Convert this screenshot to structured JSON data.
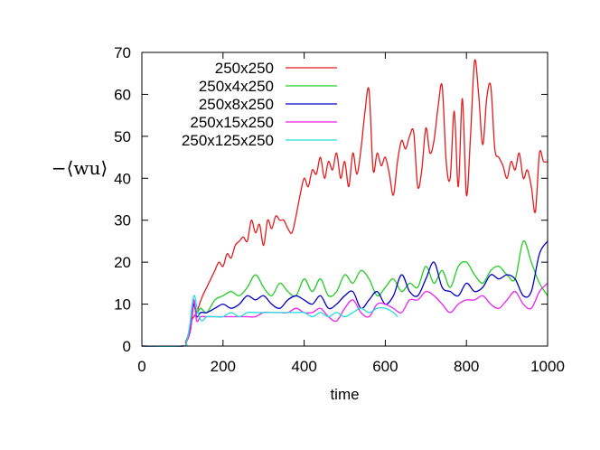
{
  "chart_data": {
    "type": "line",
    "title": "",
    "xlabel": "time",
    "ylabel": "−⟨wu⟩",
    "xlim": [
      0,
      1000
    ],
    "ylim": [
      0,
      70
    ],
    "xticks": [
      0,
      200,
      400,
      600,
      800,
      1000
    ],
    "yticks": [
      0,
      10,
      20,
      30,
      40,
      50,
      60,
      70
    ],
    "grid": false,
    "legend_position": "top-left",
    "series": [
      {
        "name": "250x250",
        "color": "#e41a1c",
        "x": [
          0,
          100,
          108,
          115,
          122,
          128,
          135,
          142,
          150,
          160,
          170,
          180,
          190,
          200,
          210,
          220,
          230,
          240,
          250,
          260,
          270,
          280,
          290,
          300,
          310,
          320,
          330,
          340,
          350,
          360,
          370,
          380,
          390,
          400,
          410,
          420,
          430,
          440,
          450,
          460,
          470,
          480,
          490,
          500,
          510,
          520,
          530,
          540,
          550,
          560,
          570,
          580,
          590,
          600,
          610,
          620,
          630,
          640,
          650,
          660,
          670,
          680,
          690,
          700,
          710,
          720,
          730,
          740,
          750,
          760,
          770,
          780,
          790,
          800,
          810,
          820,
          830,
          840,
          850,
          860,
          870,
          880,
          890,
          900,
          910,
          920,
          930,
          940,
          950,
          960,
          970,
          980,
          990,
          1000
        ],
        "y": [
          0,
          0,
          1,
          3,
          6,
          7,
          8,
          10,
          12,
          14,
          16,
          18,
          20,
          19,
          22,
          21,
          24,
          25,
          26,
          25,
          30,
          27,
          29,
          24,
          30,
          28,
          31,
          30,
          30,
          28,
          27,
          31,
          36,
          40,
          38,
          42,
          41,
          45,
          40,
          44,
          42,
          46,
          40,
          44,
          38,
          46,
          41,
          47,
          56,
          61,
          42,
          46,
          43,
          45,
          41,
          36,
          44,
          49,
          47,
          50,
          51,
          38,
          42,
          52,
          46,
          49,
          57,
          62,
          44,
          40,
          56,
          38,
          59,
          36,
          50,
          68,
          60,
          48,
          59,
          62,
          47,
          45,
          43,
          40,
          44,
          42,
          46,
          40,
          42,
          38,
          32,
          46,
          44,
          44
        ]
      },
      {
        "name": "250x4x250",
        "color": "#22cc22",
        "x": [
          0,
          100,
          110,
          120,
          127,
          135,
          145,
          160,
          180,
          200,
          220,
          240,
          260,
          280,
          300,
          320,
          340,
          360,
          380,
          400,
          420,
          440,
          460,
          480,
          500,
          520,
          540,
          560,
          580,
          600,
          620,
          640,
          660,
          680,
          700,
          720,
          740,
          760,
          780,
          800,
          820,
          840,
          860,
          880,
          900,
          920,
          940,
          960,
          980,
          1000
        ],
        "y": [
          0,
          0,
          1,
          4,
          11,
          8,
          9,
          8,
          11,
          12,
          13,
          12,
          14,
          17,
          14,
          12,
          15,
          13,
          12,
          16,
          13,
          16,
          12,
          13,
          17,
          15,
          18,
          16,
          12,
          14,
          16,
          13,
          15,
          14,
          19,
          15,
          18,
          14,
          19,
          20,
          17,
          15,
          18,
          19,
          17,
          16,
          25,
          20,
          15,
          12
        ]
      },
      {
        "name": "250x8x250",
        "color": "#0000cc",
        "x": [
          0,
          100,
          110,
          120,
          128,
          135,
          145,
          160,
          180,
          200,
          220,
          240,
          260,
          280,
          300,
          320,
          340,
          360,
          380,
          400,
          420,
          440,
          460,
          480,
          500,
          520,
          540,
          560,
          580,
          600,
          620,
          640,
          660,
          680,
          700,
          720,
          740,
          760,
          780,
          800,
          820,
          840,
          860,
          880,
          900,
          920,
          940,
          960,
          980,
          1000
        ],
        "y": [
          0,
          0,
          1,
          4,
          10,
          7,
          8,
          8,
          9,
          10,
          9,
          10,
          12,
          11,
          12,
          10,
          9,
          11,
          12,
          11,
          10,
          12,
          9,
          10,
          12,
          13,
          9,
          11,
          13,
          10,
          12,
          17,
          13,
          12,
          16,
          20,
          14,
          13,
          12,
          15,
          13,
          14,
          17,
          16,
          17,
          16,
          12,
          13,
          22,
          25
        ]
      },
      {
        "name": "250x15x250",
        "color": "#ee22ee",
        "x": [
          0,
          100,
          110,
          120,
          128,
          135,
          145,
          160,
          180,
          200,
          220,
          240,
          260,
          280,
          300,
          320,
          340,
          360,
          380,
          400,
          420,
          440,
          460,
          480,
          500,
          520,
          540,
          560,
          580,
          600,
          620,
          640,
          660,
          680,
          700,
          720,
          740,
          760,
          780,
          800,
          820,
          840,
          860,
          880,
          900,
          920,
          940,
          960,
          980,
          1000
        ],
        "y": [
          0,
          0,
          1,
          4,
          11,
          6,
          7,
          7,
          7,
          7,
          7,
          7,
          7,
          7,
          8,
          8,
          8,
          8,
          9,
          8,
          8,
          9,
          7,
          6,
          9,
          11,
          8,
          7,
          10,
          10,
          9,
          8,
          11,
          11,
          13,
          12,
          10,
          8,
          10,
          11,
          11,
          12,
          10,
          9,
          11,
          13,
          10,
          9,
          13,
          15
        ]
      },
      {
        "name": "250x125x250",
        "color": "#22dddd",
        "x": [
          0,
          100,
          110,
          118,
          124,
          130,
          138,
          148,
          160,
          180,
          200,
          220,
          240,
          260,
          280,
          300,
          320,
          340,
          360,
          380,
          400,
          420,
          440,
          460,
          480,
          500,
          520,
          540,
          560,
          580,
          600,
          620,
          630
        ],
        "y": [
          0,
          0,
          1,
          5,
          10,
          12,
          8,
          6,
          7,
          7,
          7,
          8,
          7,
          8,
          8,
          8,
          8,
          8,
          8,
          8,
          8,
          7,
          8,
          7,
          8,
          7,
          8,
          9,
          8,
          9,
          9,
          8,
          7
        ]
      }
    ]
  }
}
